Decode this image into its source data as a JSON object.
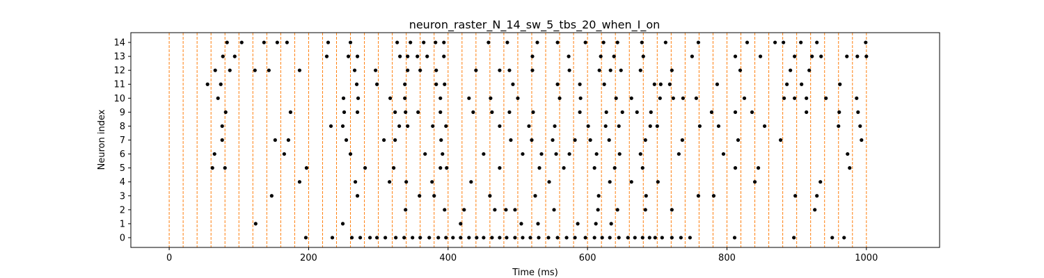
{
  "chart_data": {
    "type": "scatter",
    "title": "neuron_raster_N_14_sw_5_tbs_20_when_I_on",
    "xlabel": "Time (ms)",
    "ylabel": "Neuron index",
    "xlim": [
      -55,
      1105
    ],
    "ylim": [
      -0.7,
      14.7
    ],
    "xticks": [
      0,
      200,
      400,
      600,
      800,
      1000
    ],
    "yticks": [
      0,
      1,
      2,
      3,
      4,
      5,
      6,
      7,
      8,
      9,
      10,
      11,
      12,
      13,
      14
    ],
    "grid": false,
    "point_color": "#000000",
    "vline_color": "#ff7f0e",
    "vlines": [
      0,
      20,
      40,
      60,
      80,
      100,
      120,
      140,
      160,
      180,
      200,
      220,
      240,
      260,
      280,
      300,
      320,
      340,
      360,
      380,
      400,
      420,
      440,
      460,
      480,
      500,
      520,
      540,
      560,
      580,
      600,
      620,
      640,
      660,
      680,
      700,
      720,
      740,
      760,
      780,
      800,
      820,
      840,
      860,
      880,
      900,
      920,
      940,
      960,
      980,
      1000
    ],
    "spikes": [
      {
        "neuron": 0,
        "times": [
          196,
          234,
          262,
          274,
          288,
          298,
          310,
          325,
          337,
          349,
          360,
          373,
          386,
          397,
          407,
          418,
          430,
          441,
          451,
          463,
          474,
          484,
          496,
          507,
          518,
          530,
          544,
          557,
          570,
          582,
          597,
          610,
          621,
          632,
          645,
          658,
          668,
          679,
          689,
          697,
          707,
          721,
          734,
          747,
          811,
          896,
          951,
          968
        ]
      },
      {
        "neuron": 1,
        "times": [
          124,
          249,
          418,
          505,
          529,
          586,
          612,
          634
        ]
      },
      {
        "neuron": 2,
        "times": [
          339,
          395,
          423,
          467,
          483,
          496,
          552,
          615,
          643,
          683,
          721,
          926
        ]
      },
      {
        "neuron": 3,
        "times": [
          147,
          270,
          359,
          380,
          460,
          525,
          616,
          684,
          759,
          781,
          898,
          929
        ]
      },
      {
        "neuron": 4,
        "times": [
          187,
          267,
          316,
          340,
          377,
          433,
          545,
          632,
          663,
          701,
          840,
          934
        ]
      },
      {
        "neuron": 5,
        "times": [
          62,
          80,
          197,
          281,
          322,
          389,
          398,
          474,
          531,
          566,
          610,
          639,
          679,
          812,
          845,
          976
        ]
      },
      {
        "neuron": 6,
        "times": [
          65,
          165,
          260,
          367,
          392,
          451,
          507,
          534,
          555,
          574,
          613,
          646,
          676,
          731,
          795,
          973
        ]
      },
      {
        "neuron": 7,
        "times": [
          76,
          152,
          171,
          254,
          308,
          324,
          390,
          490,
          520,
          550,
          582,
          604,
          631,
          683,
          736,
          816,
          877,
          993
        ]
      },
      {
        "neuron": 8,
        "times": [
          76,
          232,
          249,
          330,
          342,
          378,
          397,
          474,
          516,
          553,
          601,
          626,
          645,
          690,
          700,
          761,
          788,
          854,
          960,
          991
        ]
      },
      {
        "neuron": 9,
        "times": [
          81,
          174,
          251,
          270,
          324,
          339,
          357,
          389,
          436,
          463,
          488,
          522,
          589,
          627,
          650,
          671,
          691,
          778,
          812,
          836,
          914,
          961,
          988
        ]
      },
      {
        "neuron": 10,
        "times": [
          70,
          250,
          271,
          317,
          338,
          389,
          430,
          461,
          500,
          560,
          590,
          641,
          663,
          704,
          723,
          737,
          756,
          825,
          882,
          897,
          914,
          942,
          986
        ]
      },
      {
        "neuron": 11,
        "times": [
          55,
          74,
          269,
          298,
          338,
          383,
          395,
          493,
          557,
          589,
          624,
          696,
          705,
          718,
          786,
          886,
          907,
          962
        ]
      },
      {
        "neuron": 12,
        "times": [
          66,
          87,
          123,
          143,
          187,
          266,
          296,
          342,
          360,
          383,
          440,
          474,
          488,
          521,
          574,
          617,
          633,
          648,
          676,
          721,
          819,
          891,
          918
        ]
      },
      {
        "neuron": 13,
        "times": [
          77,
          94,
          226,
          257,
          270,
          331,
          342,
          356,
          370,
          394,
          521,
          573,
          619,
          638,
          680,
          750,
          812,
          848,
          897,
          922,
          935,
          972,
          987,
          1000
        ]
      },
      {
        "neuron": 14,
        "times": [
          83,
          104,
          136,
          155,
          169,
          228,
          260,
          327,
          346,
          365,
          382,
          394,
          458,
          485,
          528,
          557,
          597,
          623,
          643,
          678,
          712,
          759,
          829,
          869,
          881,
          906,
          929,
          999
        ]
      }
    ]
  }
}
